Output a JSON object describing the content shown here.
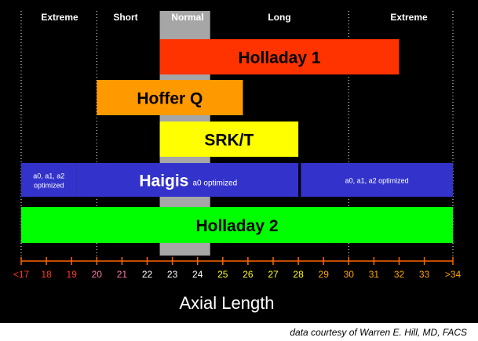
{
  "chart_data": {
    "type": "bar",
    "subtype": "floating-range",
    "xlabel": "Axial Length",
    "x_ticks": [
      "<17",
      "18",
      "19",
      "20",
      "21",
      "22",
      "23",
      "24",
      "25",
      "26",
      "27",
      "28",
      "29",
      "30",
      "31",
      "32",
      "33",
      ">34"
    ],
    "x_tick_colors": [
      "#ff3b1f",
      "#ff3b1f",
      "#ff3b1f",
      "#ff7aa8",
      "#ff7aa8",
      "#ffffff",
      "#ffffff",
      "#ffffff",
      "#ffff1a",
      "#ffff1a",
      "#ffff1a",
      "#ffff1a",
      "#ffa600",
      "#ffa600",
      "#ffa600",
      "#ffa600",
      "#ffa600",
      "#ffa600"
    ],
    "zones": [
      {
        "label": "Extreme",
        "from": 17,
        "to": 20
      },
      {
        "label": "Short",
        "from": 20,
        "to": 22.5
      },
      {
        "label": "Normal",
        "from": 22.5,
        "to": 24.5,
        "highlight": "#a6a6a6"
      },
      {
        "label": "Long",
        "from": 24.5,
        "to": 34
      },
      {
        "label": "Extreme",
        "from": 30,
        "to": 34
      }
    ],
    "bars": [
      {
        "label": "Holladay 1",
        "from": 22.5,
        "to": 32,
        "color": "#ff3300",
        "text_color": "#000000"
      },
      {
        "label": "Hoffer Q",
        "from": 20,
        "to": 25.8,
        "color": "#ff9900",
        "text_color": "#000000"
      },
      {
        "label": "SRK/T",
        "from": 22.5,
        "to": 28,
        "color": "#ffff00",
        "text_color": "#000000"
      },
      {
        "label": "Haigis",
        "note": "a0 optimized",
        "from": 19.2,
        "to": 28,
        "color": "#3333cc",
        "text_color": "#ffffff"
      },
      {
        "label": "",
        "note": "a0, a1, a2\noptimized",
        "from": 17,
        "to": 19.2,
        "color": "#3333cc",
        "text_color": "#ffffff"
      },
      {
        "label": "",
        "note": "a0, a1, a2 optimized",
        "from": 28.1,
        "to": 34,
        "color": "#3333cc",
        "text_color": "#ffffff"
      },
      {
        "label": "Holladay 2",
        "from": 17,
        "to": 34,
        "color": "#00ff00",
        "text_color": "#000000"
      }
    ],
    "colors": {
      "background": "#000000",
      "axis": "#ff6600"
    }
  },
  "credit": "data courtesy of Warren E. Hill, MD, FACS"
}
